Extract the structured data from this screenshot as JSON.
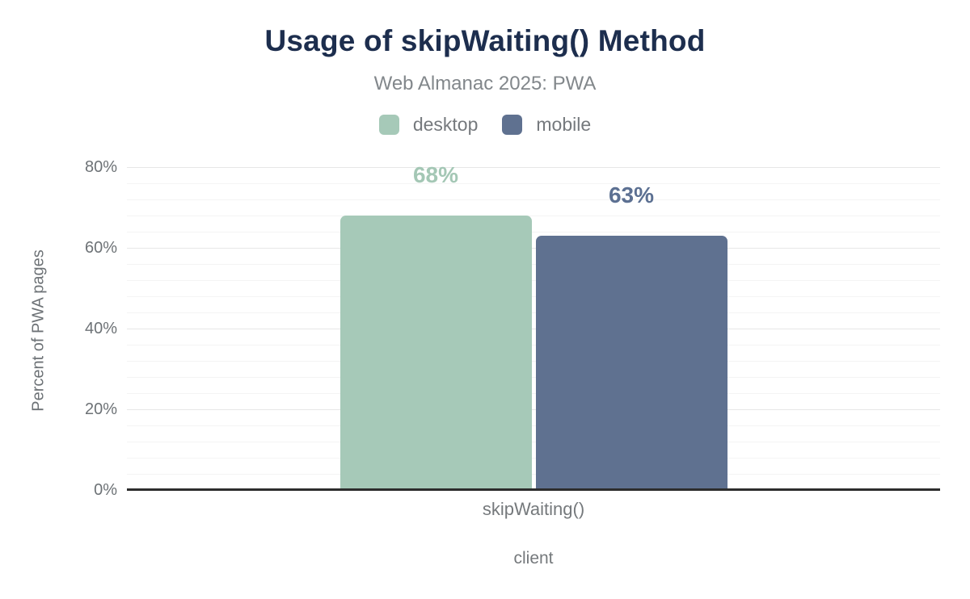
{
  "title": "Usage of skipWaiting() Method",
  "subtitle": "Web Almanac 2025: PWA",
  "legend": [
    {
      "label": "desktop",
      "color": "#a6c9b8"
    },
    {
      "label": "mobile",
      "color": "#5f7190"
    }
  ],
  "colors": {
    "title_navy": "#1d2e4e",
    "desktop_green": "#a6c9b8",
    "mobile_slate": "#5f7190",
    "desktop_label": "#a4c7b5",
    "mobile_label": "#5c7092",
    "axis_text_gray": "#6d7276",
    "baseline_dark": "#2d2d2d",
    "grid_minor": "#f4f4f4",
    "grid_major": "#e7e7e7"
  },
  "chart_data": {
    "type": "bar",
    "title": "Usage of skipWaiting() Method",
    "subtitle": "Web Almanac 2025: PWA",
    "categories": [
      "skipWaiting()"
    ],
    "series": [
      {
        "name": "desktop",
        "values": [
          68
        ],
        "color": "#a6c9b8",
        "label_color": "#a4c7b5"
      },
      {
        "name": "mobile",
        "values": [
          63
        ],
        "color": "#5f7190",
        "label_color": "#5c7092"
      }
    ],
    "data_labels": [
      [
        "68%"
      ],
      [
        "63%"
      ]
    ],
    "xlabel": "client",
    "ylabel": "Percent of PWA pages",
    "ylim": [
      0,
      80
    ],
    "yticks": [
      0,
      20,
      40,
      60,
      80
    ],
    "ytick_suffix": "%",
    "grid_minor_step": 4,
    "grid_major_step": 20,
    "grid": "on",
    "legend_position": "top"
  }
}
